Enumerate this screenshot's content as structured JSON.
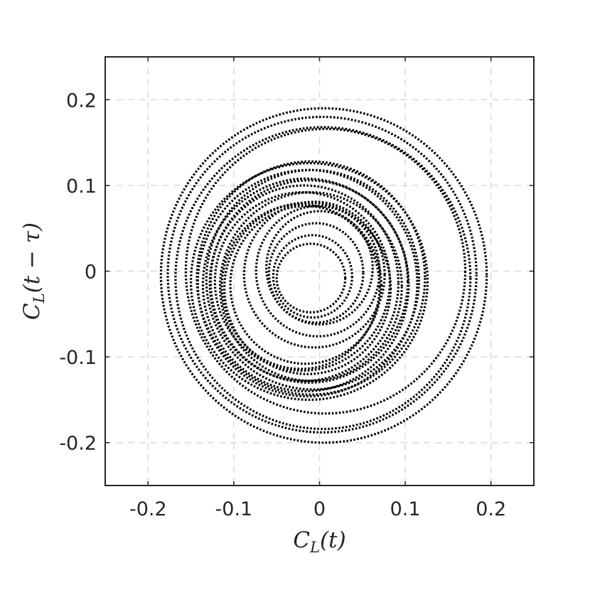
{
  "chart_data": {
    "type": "line",
    "title": "",
    "xlabel": "C_L(t)",
    "ylabel": "C_L(t − τ)",
    "xlim": [
      -0.25,
      0.25
    ],
    "ylim": [
      -0.25,
      0.25
    ],
    "grid": true,
    "xticks": [
      -0.2,
      -0.1,
      0,
      0.1,
      0.2
    ],
    "yticks": [
      -0.2,
      -0.1,
      0,
      0.1,
      0.2
    ],
    "xtick_labels": [
      "-0.2",
      "-0.1",
      "0",
      "0.1",
      "0.2"
    ],
    "ytick_labels": [
      "-0.2",
      "-0.1",
      "0",
      "0.1",
      "0.2"
    ],
    "line_style": "dotted",
    "line_color": "#000000",
    "series": [
      {
        "values": [
          {
            "cx": 0.005,
            "cy": -0.005,
            "rx": 0.19,
            "ry": 0.195
          },
          {
            "cx": 0.003,
            "cy": -0.004,
            "rx": 0.18,
            "ry": 0.184
          },
          {
            "cx": 0.004,
            "cy": -0.008,
            "rx": 0.172,
            "ry": 0.176
          },
          {
            "cx": 0.007,
            "cy": 0.0,
            "rx": 0.163,
            "ry": 0.166
          },
          {
            "cx": -0.012,
            "cy": -0.012,
            "rx": 0.138,
            "ry": 0.138
          },
          {
            "cx": -0.01,
            "cy": -0.008,
            "rx": 0.133,
            "ry": 0.136
          },
          {
            "cx": -0.014,
            "cy": -0.014,
            "rx": 0.128,
            "ry": 0.132
          },
          {
            "cx": -0.008,
            "cy": -0.01,
            "rx": 0.124,
            "ry": 0.128
          },
          {
            "cx": -0.016,
            "cy": -0.016,
            "rx": 0.12,
            "ry": 0.124
          },
          {
            "cx": -0.012,
            "cy": -0.012,
            "rx": 0.115,
            "ry": 0.118
          },
          {
            "cx": -0.018,
            "cy": -0.014,
            "rx": 0.11,
            "ry": 0.114
          },
          {
            "cx": -0.01,
            "cy": -0.018,
            "rx": 0.106,
            "ry": 0.11
          },
          {
            "cx": -0.02,
            "cy": -0.012,
            "rx": 0.102,
            "ry": 0.104
          },
          {
            "cx": -0.014,
            "cy": -0.02,
            "rx": 0.097,
            "ry": 0.1
          },
          {
            "cx": -0.022,
            "cy": -0.018,
            "rx": 0.092,
            "ry": 0.096
          },
          {
            "cx": -0.016,
            "cy": -0.016,
            "rx": 0.088,
            "ry": 0.092
          },
          {
            "cx": -0.006,
            "cy": -0.004,
            "rx": 0.082,
            "ry": 0.085
          },
          {
            "cx": -0.002,
            "cy": 0.0,
            "rx": 0.072,
            "ry": 0.076
          },
          {
            "cx": 0.0,
            "cy": 0.004,
            "rx": 0.062,
            "ry": 0.066
          },
          {
            "cx": -0.004,
            "cy": -0.002,
            "rx": 0.055,
            "ry": 0.058
          },
          {
            "cx": -0.008,
            "cy": -0.006,
            "rx": 0.046,
            "ry": 0.048
          },
          {
            "cx": -0.01,
            "cy": -0.008,
            "rx": 0.04,
            "ry": 0.04
          }
        ]
      }
    ]
  }
}
